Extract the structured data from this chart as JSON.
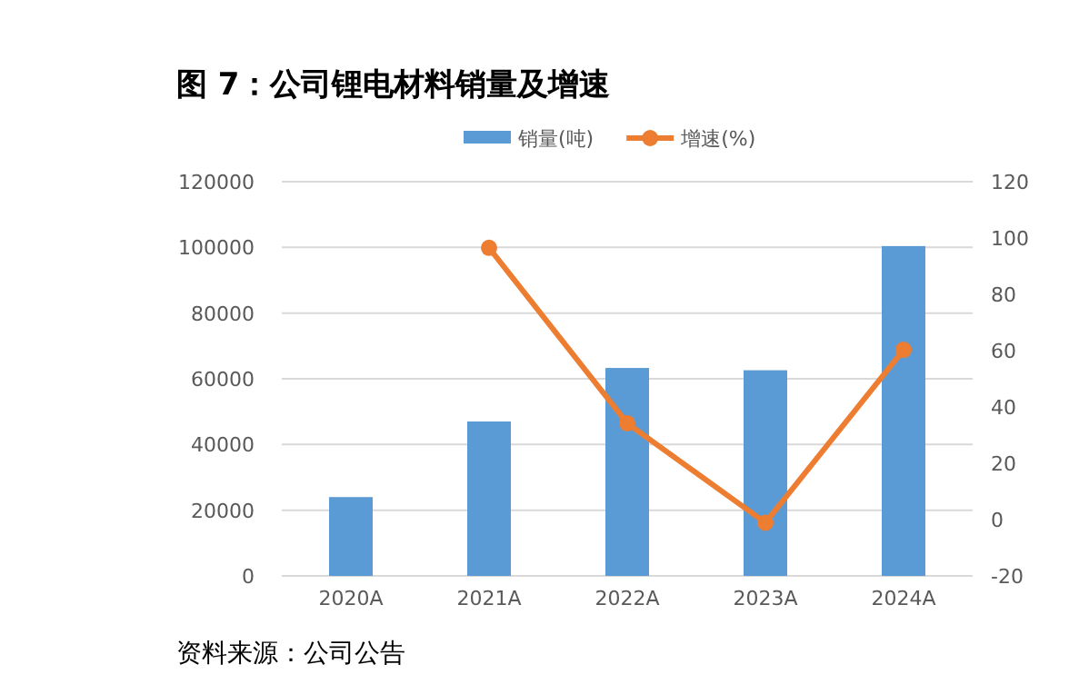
{
  "chart_data": {
    "type": "bar",
    "title": "图 7：公司锂电材料销量及增速",
    "categories": [
      "2020A",
      "2021A",
      "2022A",
      "2023A",
      "2024A"
    ],
    "series": [
      {
        "name": "销量(吨)",
        "color": "#5b9bd5",
        "values": [
          24000,
          47000,
          63300,
          62600,
          100400
        ]
      },
      {
        "name": "增速(%)",
        "type": "line",
        "axis": "y2",
        "color": "#ed7d31",
        "marker": "circle",
        "values": [
          null,
          96.5,
          34.2,
          -1.1,
          60.3
        ]
      }
    ],
    "ylim": [
      0,
      120000
    ],
    "yticks": [
      0,
      20000,
      40000,
      60000,
      80000,
      100000,
      120000
    ],
    "y2lim": [
      -20,
      120
    ],
    "y2ticks": [
      -20,
      0,
      20,
      40,
      60,
      80,
      100,
      120
    ],
    "grid": "y",
    "legend": "top",
    "annotations": [
      "资料来源：公司公告"
    ]
  }
}
